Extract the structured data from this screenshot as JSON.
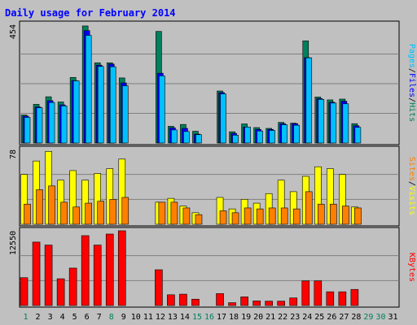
{
  "colors": {
    "background": "#c0c0c0",
    "plot_bg": "#c0c0c0",
    "grid": "#808080",
    "hits": "#00805c",
    "files": "#0000ff",
    "pages": "#00c0ff",
    "visits": "#ffff00",
    "sites": "#ff8000",
    "kbytes": "#ff0000",
    "title": "#0000ff",
    "weekday": "#000000",
    "weekend": "#00805c",
    "divider": "#000000"
  },
  "chart_data": {
    "type": "bar",
    "title": "Daily usage for February 2014",
    "x": [
      "1",
      "2",
      "3",
      "4",
      "5",
      "6",
      "7",
      "8",
      "9",
      "10",
      "11",
      "12",
      "13",
      "14",
      "15",
      "16",
      "17",
      "18",
      "19",
      "20",
      "21",
      "22",
      "23",
      "24",
      "25",
      "26",
      "27",
      "28",
      "29",
      "30",
      "31"
    ],
    "weekend_days": [
      1,
      8,
      15,
      16,
      29,
      30
    ],
    "panels": [
      {
        "ymax_label": "454",
        "ylim": [
          0,
          454
        ],
        "right_label": [
          {
            "text": "Pages",
            "color": "#00c0ff"
          },
          {
            "text": "/",
            "color": "#000000"
          },
          {
            "text": "Files",
            "color": "#0000ff"
          },
          {
            "text": "/",
            "color": "#000000"
          },
          {
            "text": "Hits",
            "color": "#00805c"
          }
        ],
        "series": [
          {
            "name": "Hits",
            "values": [
              107,
              148,
              177,
              157,
              251,
              448,
              307,
              307,
              249,
              0,
              0,
              427,
              64,
              71,
              45,
              0,
              199,
              43,
              73,
              59,
              56,
              79,
              76,
              391,
              176,
              165,
              168,
              74,
              0,
              0,
              0
            ]
          },
          {
            "name": "Files",
            "values": [
              103,
              138,
              162,
              146,
              239,
              430,
              298,
              302,
              230,
              0,
              0,
              267,
              58,
              56,
              34,
              0,
              193,
              37,
              61,
              52,
              52,
              74,
              74,
              327,
              170,
              156,
              160,
              66,
              0,
              0,
              0
            ]
          },
          {
            "name": "Pages",
            "values": [
              98,
              135,
              155,
              142,
              238,
              412,
              293,
              292,
              219,
              0,
              0,
              257,
              50,
              44,
              32,
              0,
              188,
              30,
              61,
              46,
              48,
              70,
              68,
              326,
              167,
              153,
              150,
              60,
              0,
              0,
              0
            ]
          }
        ]
      },
      {
        "ymax_label": "78",
        "ylim": [
          0,
          78
        ],
        "right_label": [
          {
            "text": "Sites",
            "color": "#ff8000"
          },
          {
            "text": "/",
            "color": "#000000"
          },
          {
            "text": "Visits",
            "color": "#ffff00"
          }
        ],
        "series": [
          {
            "name": "Visits",
            "values": [
              52,
              66,
              76,
              46,
              56,
              46,
              53,
              58,
              68,
              0,
              0,
              23,
              27,
              19,
              12,
              0,
              28,
              16,
              26,
              22,
              32,
              46,
              34,
              50,
              60,
              58,
              52,
              18,
              0,
              0,
              0
            ]
          },
          {
            "name": "Sites",
            "values": [
              21,
              36,
              40,
              23,
              18,
              22,
              24,
              26,
              28,
              0,
              0,
              23,
              23,
              17,
              10,
              0,
              14,
              12,
              17,
              16,
              17,
              17,
              16,
              34,
              21,
              21,
              19,
              17,
              0,
              0,
              0
            ]
          }
        ]
      },
      {
        "ymax_label": "12550",
        "ylim": [
          0,
          12550
        ],
        "right_label": [
          {
            "text": "KBytes",
            "color": "#ff0000"
          }
        ],
        "series": [
          {
            "name": "KBytes",
            "values": [
              4670,
              10650,
              10150,
              4490,
              6280,
              11730,
              10150,
              12000,
              12550,
              0,
              0,
              6000,
              1800,
              1900,
              1060,
              0,
              2000,
              470,
              1450,
              770,
              730,
              730,
              1270,
              4130,
              4130,
              2300,
              2300,
              2700,
              0,
              0,
              0
            ]
          }
        ]
      }
    ]
  }
}
